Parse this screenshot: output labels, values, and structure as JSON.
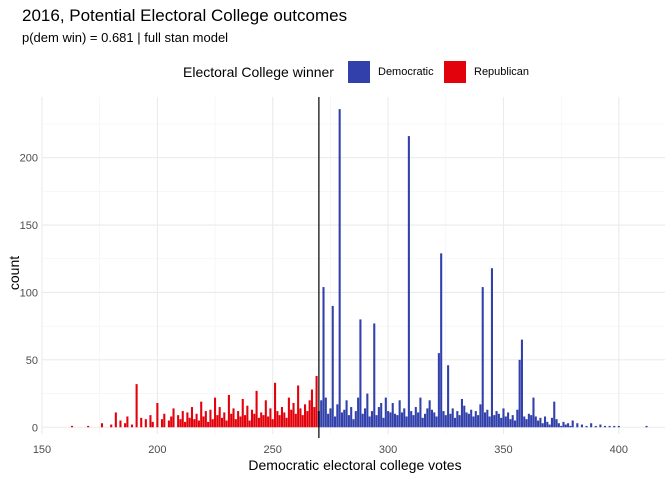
{
  "title": "2016, Potential Electoral College outcomes",
  "subtitle": "p(dem win) = 0.681 | full stan model",
  "legend": {
    "title": "Electoral College winner",
    "items": [
      {
        "label": "Democratic",
        "color": "#3140AA"
      },
      {
        "label": "Republican",
        "color": "#E2020B"
      }
    ]
  },
  "chart_data": {
    "type": "bar",
    "title": "2016, Potential Electoral College outcomes",
    "xlabel": "Democratic electoral college votes",
    "ylabel": "count",
    "xlim": [
      150,
      420
    ],
    "ylim": [
      -5,
      245
    ],
    "x_ticks": [
      150,
      200,
      250,
      300,
      350,
      400
    ],
    "y_ticks": [
      0,
      50,
      100,
      150,
      200
    ],
    "vline": 270,
    "grid": true,
    "legend_position": "top",
    "series": [
      {
        "name": "Republican",
        "color": "#E2020B",
        "x": [
          163,
          170,
          176,
          180,
          182,
          184,
          186,
          187,
          189,
          191,
          193,
          195,
          197,
          198,
          200,
          202,
          203,
          205,
          206,
          207,
          209,
          210,
          211,
          212,
          213,
          214,
          215,
          216,
          217,
          218,
          219,
          220,
          221,
          222,
          223,
          224,
          225,
          226,
          227,
          228,
          229,
          230,
          231,
          232,
          233,
          234,
          235,
          236,
          237,
          238,
          239,
          240,
          241,
          242,
          243,
          244,
          245,
          246,
          247,
          248,
          249,
          250,
          251,
          252,
          253,
          254,
          255,
          256,
          257,
          258,
          259,
          260,
          261,
          262,
          263,
          264,
          265,
          266,
          267,
          268,
          269
        ],
        "values": [
          1,
          1,
          3,
          2,
          11,
          5,
          3,
          8,
          2,
          32,
          7,
          6,
          9,
          4,
          18,
          6,
          10,
          5,
          8,
          14,
          9,
          6,
          12,
          4,
          11,
          7,
          15,
          6,
          10,
          5,
          19,
          8,
          12,
          4,
          13,
          6,
          22,
          9,
          15,
          7,
          11,
          5,
          24,
          10,
          14,
          6,
          12,
          8,
          21,
          9,
          16,
          5,
          13,
          10,
          27,
          7,
          11,
          9,
          20,
          8,
          14,
          6,
          33,
          12,
          9,
          15,
          11,
          7,
          22,
          13,
          18,
          10,
          31,
          14,
          9,
          17,
          12,
          20,
          28,
          15,
          38
        ]
      },
      {
        "name": "Democratic",
        "color": "#3140AA",
        "x": [
          270,
          271,
          272,
          273,
          274,
          275,
          276,
          277,
          278,
          279,
          280,
          281,
          282,
          283,
          284,
          285,
          286,
          287,
          288,
          289,
          290,
          291,
          292,
          293,
          294,
          295,
          296,
          297,
          298,
          299,
          300,
          301,
          302,
          303,
          304,
          305,
          306,
          307,
          308,
          309,
          310,
          311,
          312,
          313,
          314,
          315,
          316,
          317,
          318,
          319,
          320,
          321,
          322,
          323,
          324,
          325,
          326,
          327,
          328,
          329,
          330,
          331,
          332,
          333,
          334,
          335,
          336,
          337,
          338,
          339,
          340,
          341,
          342,
          343,
          344,
          345,
          346,
          347,
          348,
          349,
          350,
          351,
          352,
          353,
          354,
          355,
          356,
          357,
          358,
          359,
          360,
          361,
          362,
          363,
          364,
          365,
          366,
          367,
          368,
          369,
          370,
          371,
          372,
          373,
          374,
          375,
          376,
          377,
          378,
          379,
          380,
          382,
          384,
          386,
          388,
          390,
          392,
          394,
          396,
          398,
          400,
          412
        ],
        "values": [
          12,
          20,
          104,
          22,
          10,
          14,
          90,
          8,
          17,
          236,
          11,
          13,
          20,
          9,
          15,
          6,
          12,
          22,
          80,
          10,
          14,
          25,
          8,
          12,
          77,
          9,
          15,
          18,
          7,
          22,
          12,
          11,
          18,
          10,
          9,
          20,
          11,
          14,
          8,
          216,
          12,
          9,
          15,
          11,
          22,
          7,
          10,
          14,
          20,
          13,
          11,
          8,
          55,
          129,
          12,
          9,
          46,
          10,
          14,
          7,
          12,
          9,
          21,
          16,
          11,
          10,
          13,
          8,
          12,
          9,
          17,
          104,
          11,
          13,
          8,
          118,
          9,
          12,
          10,
          7,
          14,
          8,
          11,
          6,
          9,
          5,
          13,
          50,
          65,
          8,
          6,
          10,
          9,
          22,
          8,
          5,
          7,
          3,
          8,
          4,
          2,
          7,
          19,
          6,
          3,
          1,
          4,
          2,
          3,
          1,
          5,
          3,
          2,
          1,
          3,
          1,
          2,
          1,
          1,
          1,
          1,
          1
        ]
      }
    ]
  }
}
